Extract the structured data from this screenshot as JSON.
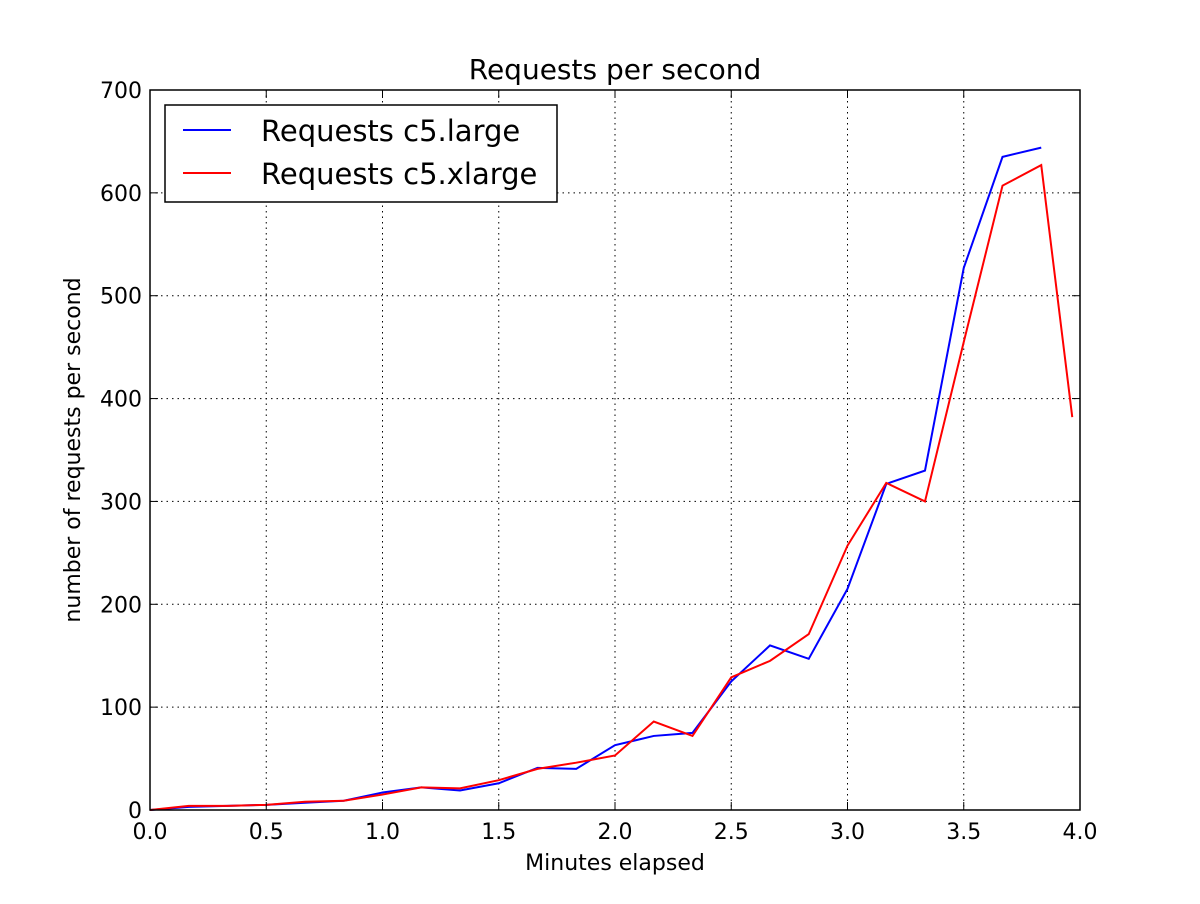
{
  "chart_data": {
    "type": "line",
    "title": "Requests per second",
    "xlabel": "Minutes elapsed",
    "ylabel": "number of requests per second",
    "xlim": [
      0,
      4
    ],
    "ylim": [
      0,
      700
    ],
    "xticks": [
      "0.0",
      "0.5",
      "1.0",
      "1.5",
      "2.0",
      "2.5",
      "3.0",
      "3.5",
      "4.0"
    ],
    "yticks": [
      "0",
      "100",
      "200",
      "300",
      "400",
      "500",
      "600",
      "700"
    ],
    "grid": true,
    "legend_position": "top-left",
    "series": [
      {
        "name": "Requests c5.large",
        "color": "#0000ff",
        "x": [
          0,
          0.1667,
          0.3333,
          0.5,
          0.6667,
          0.8333,
          1.0,
          1.1667,
          1.3333,
          1.5,
          1.6667,
          1.8333,
          2.0,
          2.1667,
          2.3333,
          2.5,
          2.6667,
          2.8333,
          3.0,
          3.1667,
          3.3333,
          3.5,
          3.6667,
          3.8333
        ],
        "y": [
          0,
          3,
          4,
          5,
          7,
          9,
          17,
          22,
          19,
          26,
          41,
          40,
          63,
          72,
          75,
          125,
          160,
          147,
          215,
          317,
          330,
          527,
          635,
          644
        ]
      },
      {
        "name": "Requests c5.xlarge",
        "color": "#ff0000",
        "x": [
          0,
          0.1667,
          0.3333,
          0.5,
          0.6667,
          0.8333,
          1.0,
          1.1667,
          1.3333,
          1.5,
          1.6667,
          1.8333,
          2.0,
          2.1667,
          2.3333,
          2.5,
          2.6667,
          2.8333,
          3.0,
          3.1667,
          3.3333,
          3.5,
          3.6667,
          3.8333,
          3.9667
        ],
        "y": [
          0,
          4,
          4,
          5,
          8,
          9,
          15,
          22,
          21,
          29,
          40,
          46,
          53,
          86,
          72,
          129,
          145,
          171,
          257,
          318,
          300,
          455,
          607,
          627,
          382
        ]
      }
    ]
  }
}
